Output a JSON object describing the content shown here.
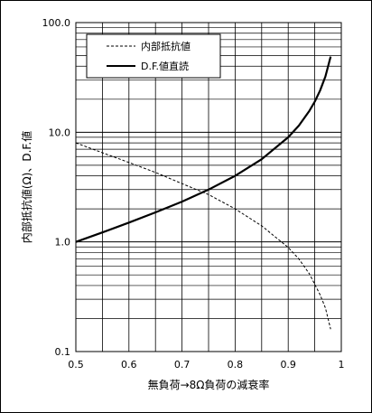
{
  "chart_data": {
    "type": "line",
    "title": "",
    "xlabel": "無負荷→8Ω負荷の減衰率",
    "ylabel": "内部抵抗値(Ω)、D.F.値",
    "xlim": [
      0.5,
      1.0
    ],
    "ylim": [
      0.1,
      100.0
    ],
    "yscale": "log",
    "grid": true,
    "legend_position": "top-left",
    "x_tick_labels": [
      "0.5",
      "0.6",
      "0.7",
      "0.8",
      "0.9",
      "1"
    ],
    "y_tick_labels": [
      "0.1",
      "1.0",
      "10.0",
      "100.0"
    ],
    "series": [
      {
        "name": "内部抵抗値",
        "style": "dashed",
        "color": "#000000",
        "x": [
          0.5,
          0.55,
          0.6,
          0.65,
          0.7,
          0.75,
          0.8,
          0.85,
          0.9,
          0.92,
          0.94,
          0.96,
          0.97,
          0.98
        ],
        "y": [
          8.0,
          6.5,
          5.3,
          4.3,
          3.4,
          2.7,
          2.0,
          1.4,
          0.89,
          0.7,
          0.51,
          0.33,
          0.25,
          0.16
        ]
      },
      {
        "name": "D.F.値直読",
        "style": "solid",
        "color": "#000000",
        "x": [
          0.5,
          0.55,
          0.6,
          0.65,
          0.7,
          0.75,
          0.8,
          0.85,
          0.9,
          0.92,
          0.94,
          0.95,
          0.96,
          0.97,
          0.98
        ],
        "y": [
          1.0,
          1.22,
          1.5,
          1.86,
          2.33,
          3.0,
          4.0,
          5.67,
          9.0,
          11.5,
          15.7,
          19.0,
          24.0,
          32.3,
          49.0
        ]
      }
    ]
  }
}
